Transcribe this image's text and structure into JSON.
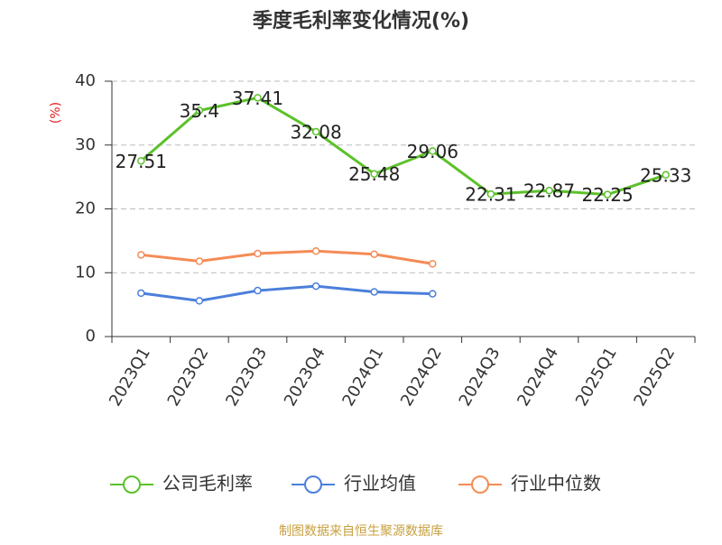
{
  "chart_data": {
    "type": "line",
    "title": "季度毛利率变化情况(%)",
    "y_label": "(%)",
    "source": "制图数据来自恒生聚源数据库",
    "categories": [
      "2023Q1",
      "2023Q2",
      "2023Q3",
      "2023Q4",
      "2024Q1",
      "2024Q2",
      "2024Q3",
      "2024Q4",
      "2025Q1",
      "2025Q2"
    ],
    "series": [
      {
        "name": "公司毛利率",
        "color": "#5cc12a",
        "values": [
          27.51,
          35.4,
          37.41,
          32.08,
          25.48,
          29.06,
          22.31,
          22.87,
          22.25,
          25.33
        ],
        "show_labels": true
      },
      {
        "name": "行业均值",
        "color": "#4b7fdb",
        "values": [
          6.8,
          5.6,
          7.2,
          7.9,
          7.0,
          6.7,
          null,
          null,
          null,
          null
        ]
      },
      {
        "name": "行业中位数",
        "color": "#f58b55",
        "values": [
          12.8,
          11.8,
          13.0,
          13.4,
          12.9,
          11.4,
          null,
          null,
          null,
          null
        ]
      }
    ],
    "ylim": [
      0,
      40
    ],
    "yticks": [
      0,
      10,
      20,
      30,
      40
    ],
    "grid": true
  }
}
